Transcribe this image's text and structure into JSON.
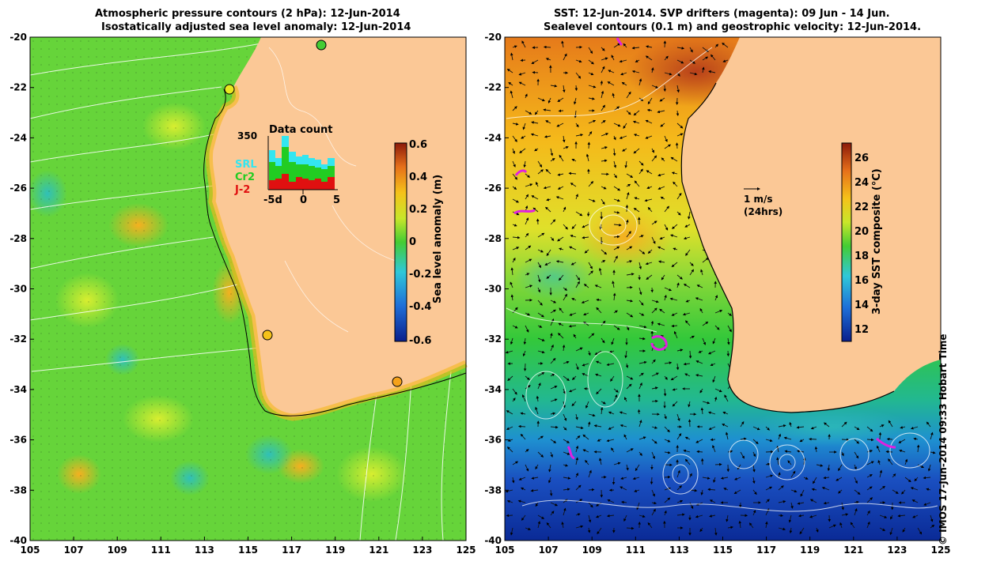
{
  "left_panel": {
    "title_line1": "Atmospheric pressure contours (2 hPa): 12-Jun-2014",
    "title_line2": "Isostatically adjusted sea level anomaly: 12-Jun-2014",
    "inset": {
      "title": "Data count",
      "max_label": "350",
      "x_labels": [
        "-5d",
        "0",
        "5"
      ],
      "legend": [
        {
          "label": "SRL",
          "color": "#33e6f0"
        },
        {
          "label": "Cr2",
          "color": "#22cc22"
        },
        {
          "label": "J-2",
          "color": "#e01010"
        }
      ]
    },
    "colorbar": {
      "label": "Sea level anomaly (m)",
      "ticks": [
        "0.6",
        "0.4",
        "0.2",
        "0",
        "-0.2",
        "-0.4",
        "-0.6"
      ]
    }
  },
  "right_panel": {
    "title_line1": "SST: 12-Jun-2014. SVP drifters (magenta): 09 Jun - 14 Jun.",
    "title_line2": "Sealevel contours (0.1 m) and geostrophic velocity: 12-Jun-2014.",
    "velocity_scale": {
      "label": "1 m/s",
      "sublabel": "(24hrs)"
    },
    "colorbar": {
      "label": "3-day SST composite (°C)",
      "ticks": [
        "26",
        "24",
        "22",
        "20",
        "18",
        "16",
        "14",
        "12"
      ]
    }
  },
  "axes": {
    "lat_ticks": [
      "-20",
      "-22",
      "-24",
      "-26",
      "-28",
      "-30",
      "-32",
      "-34",
      "-36",
      "-38",
      "-40"
    ],
    "lon_ticks": [
      "105",
      "107",
      "109",
      "111",
      "113",
      "115",
      "117",
      "119",
      "121",
      "123",
      "125"
    ]
  },
  "credit": "© IMOS 17-Jun-2014 09:33 Hobart Time",
  "colors": {
    "land": "#fbc896",
    "ocean_green": "#66d43a"
  }
}
